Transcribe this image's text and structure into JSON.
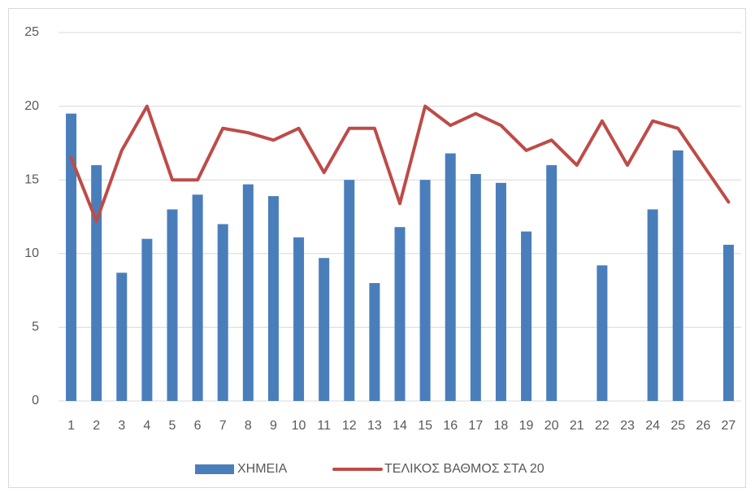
{
  "chart_data": {
    "type": "bar",
    "categories": [
      "1",
      "2",
      "3",
      "4",
      "5",
      "6",
      "7",
      "8",
      "9",
      "10",
      "11",
      "12",
      "13",
      "14",
      "15",
      "16",
      "17",
      "18",
      "19",
      "20",
      "21",
      "22",
      "23",
      "24",
      "25",
      "26",
      "27"
    ],
    "series": [
      {
        "name": "ΧΗΜΕΙΑ",
        "type": "bar",
        "color": "#4a7ebb",
        "values": [
          19.5,
          16,
          8.7,
          11,
          13,
          14,
          12,
          14.7,
          13.9,
          11.1,
          9.7,
          15,
          8,
          11.8,
          15,
          16.8,
          15.4,
          14.8,
          11.5,
          16,
          null,
          9.2,
          null,
          13,
          17,
          null,
          10.6
        ]
      },
      {
        "name": "ΤΕΛΙΚΟΣ ΒΑΘΜΟΣ ΣΤΑ 20",
        "type": "line",
        "color": "#be4b48",
        "values": [
          16.5,
          12.2,
          17,
          20,
          15,
          15,
          18.5,
          18.2,
          17.7,
          18.5,
          15.5,
          18.5,
          18.5,
          13.4,
          20,
          18.7,
          19.5,
          18.7,
          17,
          17.7,
          16,
          19,
          16,
          19,
          18.5,
          16,
          13.5
        ]
      }
    ],
    "ylim": [
      0,
      25
    ],
    "yticks": [
      0,
      5,
      10,
      15,
      20,
      25
    ],
    "grid": true,
    "legend": "bottom"
  }
}
